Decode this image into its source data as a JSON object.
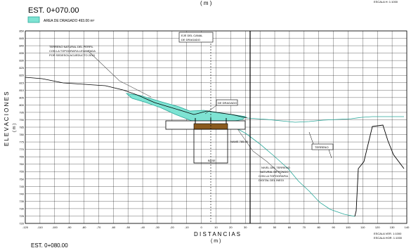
{
  "header": {
    "top_unit": "( m )",
    "top_right_scale": "ESCALA H: 1:1000",
    "station": "EST. 0+070.00",
    "legend_label": "AREA DE DRAGADO 493.00 m²"
  },
  "bottom": {
    "x_title": "D I S T A N C I A S",
    "x_unit": "( m )",
    "next_station": "EST. 0+080.00",
    "scale_v": "ESCALA VER. 1:1000",
    "scale_h": "ESCALA HOR. 1:1000"
  },
  "y_axis_title": "E L E V A C I O N E S",
  "y_axis_unit": "( m )",
  "y_ticks": [
    "850",
    "845",
    "840",
    "835",
    "830",
    "825",
    "820",
    "815",
    "810",
    "805",
    "800",
    "795",
    "790",
    "785",
    "780",
    "775",
    "770",
    "765",
    "760",
    "755",
    "750",
    "745",
    "740",
    "735",
    "730",
    "725",
    "720"
  ],
  "x_ticks": [
    "-120",
    "-110",
    "-100",
    "-90",
    "-80",
    "-70",
    "-60",
    "-50",
    "-40",
    "-30",
    "-20",
    "-10",
    "0",
    "10",
    "20",
    "30",
    "40",
    "50",
    "60",
    "70",
    "80",
    "90",
    "100",
    "110",
    "120",
    "130",
    "140"
  ],
  "annotations": {
    "terrain_note": [
      "TERRENO NATURAL DEL PERFIL",
      "CON LA TOPOGRAFIA LEVANTADA",
      "POR SEDESOL ACUEDUCTO 2013"
    ],
    "channel_axis": [
      "EJE DEL CANAL",
      "DE DRAGADO"
    ],
    "dredging": "DE DRAGADO",
    "structure_level": "NAME 785.00",
    "proj_terrain": "TERRENO",
    "lower_terrain": [
      "NIVEL DEL TERRENO",
      "NATURAL DE FONDO",
      "CON LA TOPOGRAFIA",
      "DIGITAL DEL INEGI"
    ],
    "base_label": "BASE"
  },
  "colors": {
    "dredge_fill": "#7ee3d3",
    "dredge_stroke": "#2aa89a",
    "structure_fill": "#8a5a1e",
    "grid": "#000000"
  }
}
